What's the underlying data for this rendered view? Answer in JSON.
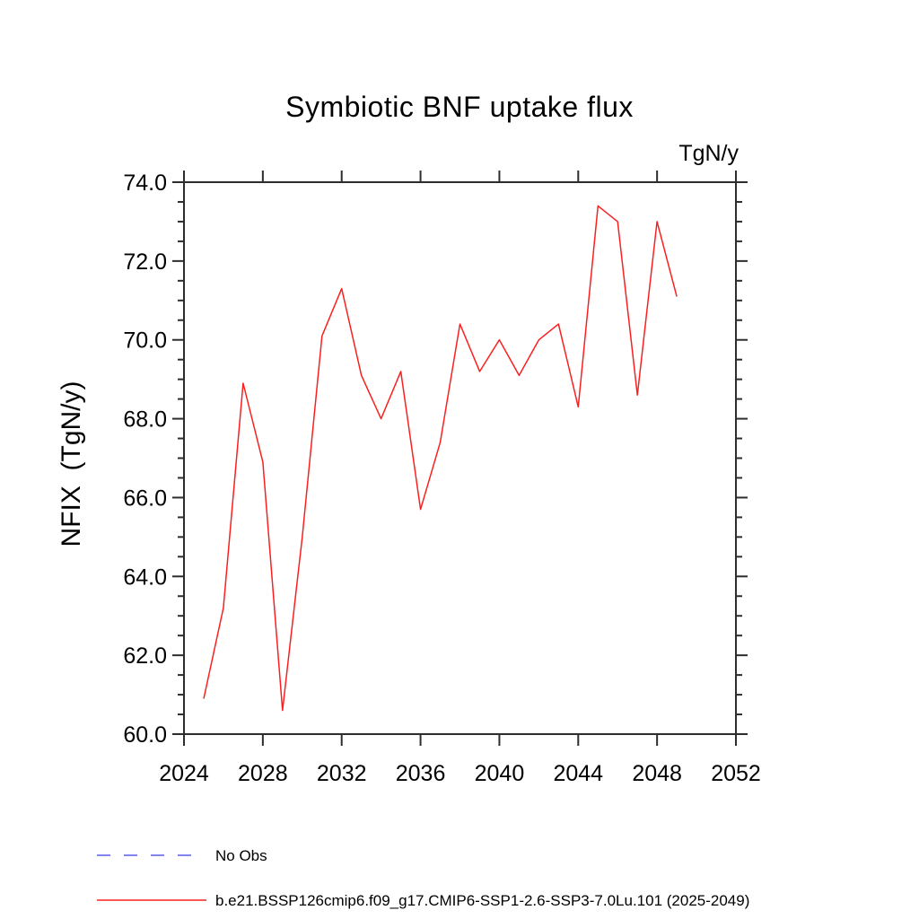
{
  "chart_data": {
    "type": "line",
    "title": "Symbiotic BNF uptake flux",
    "unit_label": "TgN/y",
    "ylabel": "NFIX  (TgN/y)",
    "xlabel": "",
    "xlim": [
      2024,
      2052
    ],
    "ylim": [
      60.0,
      74.0
    ],
    "x_ticks": [
      2024,
      2028,
      2032,
      2036,
      2040,
      2044,
      2048,
      2052
    ],
    "y_ticks": [
      60.0,
      62.0,
      64.0,
      66.0,
      68.0,
      70.0,
      72.0,
      74.0
    ],
    "y_minor_step": 0.5,
    "grid": false,
    "legend_position": "bottom-left",
    "axis_color": "#2d2d2d",
    "x": [
      2025,
      2026,
      2027,
      2028,
      2029,
      2030,
      2031,
      2032,
      2033,
      2034,
      2035,
      2036,
      2037,
      2038,
      2039,
      2040,
      2041,
      2042,
      2043,
      2044,
      2045,
      2046,
      2047,
      2048,
      2049
    ],
    "series": [
      {
        "name": "No Obs",
        "style": "dashed",
        "color": "#8484ee",
        "values": []
      },
      {
        "name": "b.e21.BSSP126cmip6.f09_g17.CMIP6-SSP1-2.6-SSP3-7.0Lu.101 (2025-2049)",
        "style": "solid",
        "color": "#fa2020",
        "values": [
          60.9,
          63.2,
          68.9,
          66.9,
          60.6,
          65.0,
          70.1,
          71.3,
          69.1,
          68.0,
          69.2,
          65.7,
          67.4,
          70.4,
          69.2,
          70.0,
          69.1,
          70.0,
          70.4,
          68.3,
          73.4,
          73.0,
          68.6,
          73.0,
          71.1
        ]
      }
    ]
  }
}
